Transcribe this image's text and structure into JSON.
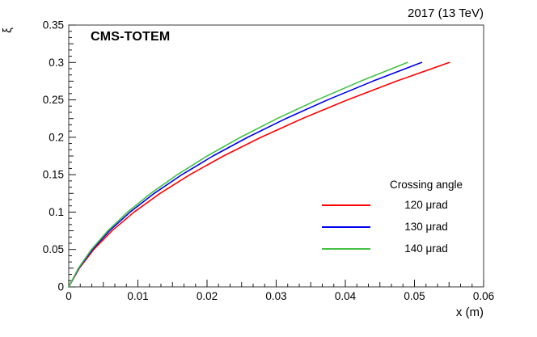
{
  "header": {
    "run_label": "2017 (13 TeV)",
    "experiment_label": "CMS-TOTEM"
  },
  "axes": {
    "x": {
      "title": "x (m)",
      "min": 0,
      "max": 0.06,
      "tick_values": [
        0,
        0.01,
        0.02,
        0.03,
        0.04,
        0.05,
        0.06
      ],
      "tick_labels": [
        "0",
        "0.01",
        "0.02",
        "0.03",
        "0.04",
        "0.05",
        "0.06"
      ]
    },
    "y": {
      "title": "ξ",
      "min": 0,
      "max": 0.35,
      "tick_values": [
        0,
        0.05,
        0.1,
        0.15,
        0.2,
        0.25,
        0.3,
        0.35
      ],
      "tick_labels": [
        "0",
        "0.05",
        "0.1",
        "0.15",
        "0.2",
        "0.25",
        "0.3",
        "0.35"
      ]
    }
  },
  "legend": {
    "title": "Crossing angle",
    "entries": [
      {
        "label": "120 μrad",
        "color": "#ff0000"
      },
      {
        "label": "130 μrad",
        "color": "#0000ee"
      },
      {
        "label": "140 μrad",
        "color": "#44c144"
      }
    ]
  },
  "chart_data": {
    "type": "line",
    "title": "2017 (13 TeV)",
    "xlabel": "x (m)",
    "ylabel": "ξ",
    "xlim": [
      0,
      0.06
    ],
    "ylim": [
      0,
      0.35
    ],
    "grid": false,
    "legend_position": "right-middle",
    "series": [
      {
        "name": "120 μrad",
        "color": "#ff0000",
        "points_x_xi": [
          [
            0.0,
            0.0
          ],
          [
            0.00153,
            0.025
          ],
          [
            0.00361,
            0.05
          ],
          [
            0.00625,
            0.075
          ],
          [
            0.00945,
            0.1
          ],
          [
            0.0132,
            0.125
          ],
          [
            0.01751,
            0.15
          ],
          [
            0.02238,
            0.175
          ],
          [
            0.0278,
            0.2
          ],
          [
            0.03378,
            0.225
          ],
          [
            0.04031,
            0.25
          ],
          [
            0.0474,
            0.275
          ],
          [
            0.05505,
            0.3
          ]
        ]
      },
      {
        "name": "130 μrad",
        "color": "#0000ee",
        "points_x_xi": [
          [
            0.0,
            0.0
          ],
          [
            0.00145,
            0.025
          ],
          [
            0.00342,
            0.05
          ],
          [
            0.00589,
            0.075
          ],
          [
            0.00887,
            0.1
          ],
          [
            0.01236,
            0.125
          ],
          [
            0.01636,
            0.15
          ],
          [
            0.02086,
            0.175
          ],
          [
            0.02588,
            0.2
          ],
          [
            0.0314,
            0.225
          ],
          [
            0.03744,
            0.25
          ],
          [
            0.04398,
            0.275
          ],
          [
            0.05103,
            0.3
          ]
        ]
      },
      {
        "name": "140 μrad",
        "color": "#44c144",
        "points_x_xi": [
          [
            0.0,
            0.0
          ],
          [
            0.00139,
            0.025
          ],
          [
            0.00328,
            0.05
          ],
          [
            0.00565,
            0.075
          ],
          [
            0.00851,
            0.1
          ],
          [
            0.01186,
            0.125
          ],
          [
            0.0157,
            0.15
          ],
          [
            0.02002,
            0.175
          ],
          [
            0.02484,
            0.2
          ],
          [
            0.03014,
            0.225
          ],
          [
            0.03594,
            0.25
          ],
          [
            0.04222,
            0.275
          ],
          [
            0.04899,
            0.3
          ]
        ]
      }
    ]
  }
}
